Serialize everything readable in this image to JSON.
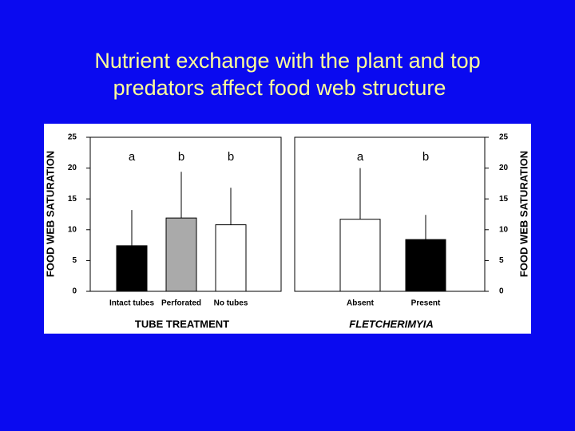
{
  "title_lines": [
    "Nutrient exchange with the plant and top",
    "predators affect food web structure"
  ],
  "chart_data": [
    {
      "type": "bar",
      "ylabel": "FOOD WEB SATURATION",
      "xlabel": "TUBE TREATMENT",
      "yaxis_side": "left",
      "categories": [
        "Intact tubes",
        "Perforated",
        "No tubes"
      ],
      "values": [
        7.4,
        11.9,
        10.8
      ],
      "errors": [
        5.8,
        7.5,
        6.0
      ],
      "colors": [
        "#000000",
        "#aaaaaa",
        "#ffffff"
      ],
      "annotations": [
        "a",
        "b",
        "b"
      ],
      "ylim": [
        0,
        25
      ],
      "yticks": [
        0,
        5,
        10,
        15,
        20,
        25
      ]
    },
    {
      "type": "bar",
      "ylabel": "FOOD WEB SATURATION",
      "xlabel": "FLETCHERIMYIA",
      "yaxis_side": "right",
      "categories": [
        "Absent",
        "Present"
      ],
      "values": [
        11.7,
        8.4
      ],
      "errors": [
        8.3,
        4.0
      ],
      "colors": [
        "#ffffff",
        "#000000"
      ],
      "annotations": [
        "a",
        "b"
      ],
      "ylim": [
        0,
        25
      ],
      "yticks": [
        0,
        5,
        10,
        15,
        20,
        25
      ]
    }
  ]
}
